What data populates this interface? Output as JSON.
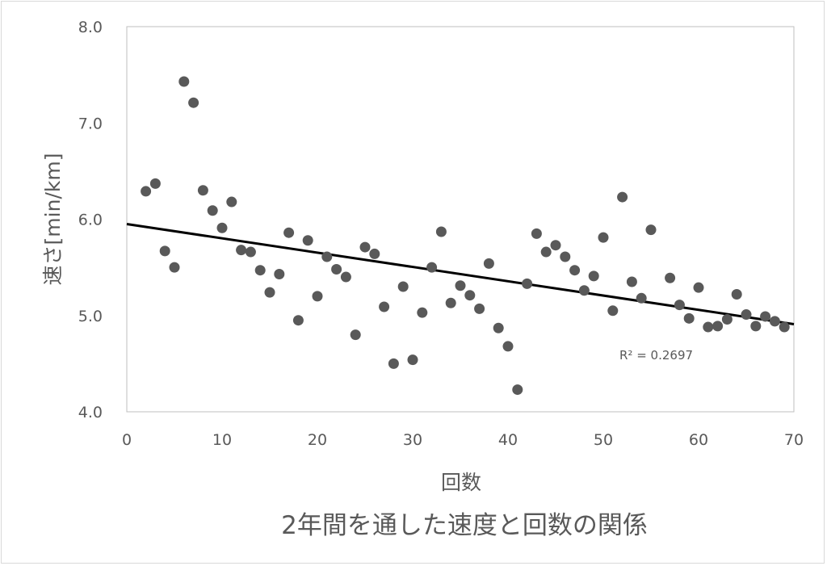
{
  "chart_data": {
    "type": "scatter",
    "title": "2年間を通した速度と回数の関係",
    "xlabel": "回数",
    "ylabel": "速さ[min/km]",
    "xlim": [
      0,
      70
    ],
    "ylim": [
      4.0,
      8.0
    ],
    "x_ticks": [
      "0",
      "10",
      "20",
      "30",
      "40",
      "50",
      "60",
      "70"
    ],
    "y_ticks": [
      "4.0",
      "5.0",
      "6.0",
      "7.0",
      "8.0"
    ],
    "grid": false,
    "legend": "none",
    "series": [
      {
        "x": [
          2,
          3,
          4,
          5,
          6,
          7,
          8,
          9,
          10,
          11,
          12,
          13,
          14,
          15,
          16,
          17,
          18,
          19,
          20,
          21,
          22,
          23,
          24,
          25,
          26,
          27,
          28,
          29,
          30,
          31,
          32,
          33,
          34,
          35,
          36,
          37,
          38,
          39,
          40,
          41,
          42,
          43,
          44,
          45,
          46,
          47,
          48,
          49,
          50,
          51,
          52,
          53,
          54,
          55,
          57,
          58,
          59,
          60,
          61,
          62,
          63,
          64,
          65,
          66,
          67,
          68,
          69
        ],
        "y": [
          6.29,
          6.37,
          5.67,
          5.5,
          7.43,
          7.21,
          6.3,
          6.09,
          5.91,
          6.18,
          5.68,
          5.66,
          5.47,
          5.24,
          5.43,
          5.86,
          4.95,
          5.78,
          5.2,
          5.61,
          5.48,
          5.4,
          4.8,
          5.71,
          5.64,
          5.09,
          4.5,
          5.3,
          4.54,
          5.03,
          5.5,
          5.87,
          5.13,
          5.31,
          5.21,
          5.07,
          5.54,
          4.87,
          4.68,
          4.23,
          5.33,
          5.85,
          5.66,
          5.73,
          5.61,
          5.47,
          5.26,
          5.41,
          5.81,
          5.05,
          6.23,
          5.35,
          5.18,
          5.89,
          5.39,
          5.11,
          4.97,
          5.29,
          4.88,
          4.89,
          4.96,
          5.22,
          5.01,
          4.89,
          4.99,
          4.94,
          4.88
        ],
        "color": "#595959"
      }
    ],
    "trendline": {
      "type": "linear",
      "x": [
        0,
        70
      ],
      "y": [
        5.95,
        4.91
      ],
      "color": "#000000",
      "r2_label": "R² = 0.2697"
    }
  }
}
